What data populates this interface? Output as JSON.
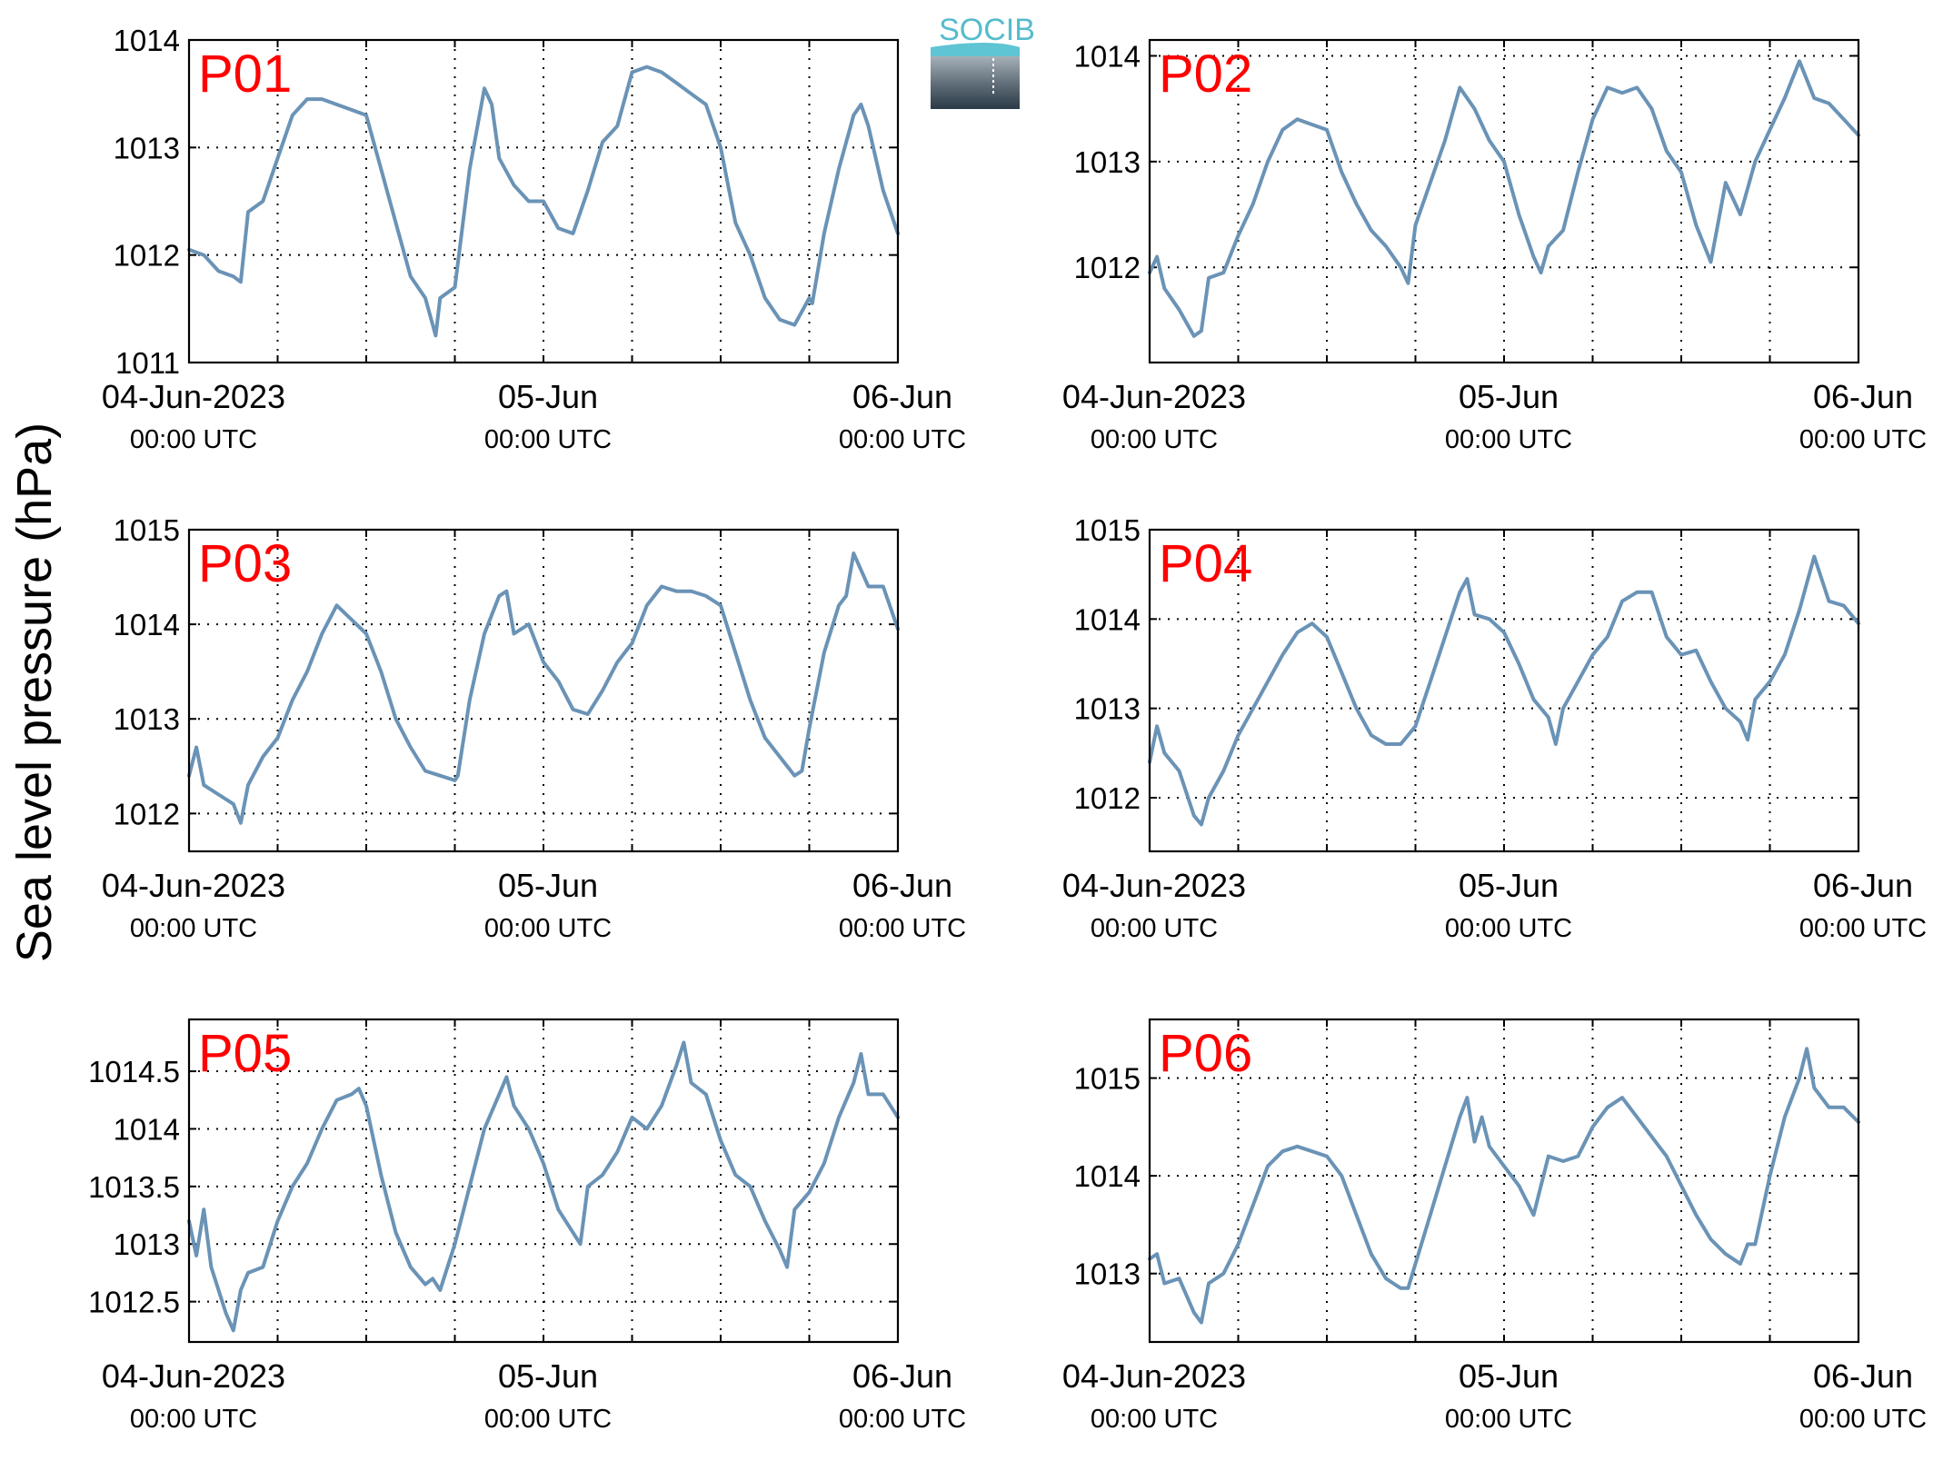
{
  "ylabel": "Sea level pressure (hPa)",
  "logo_text": "SOCIB",
  "colors": {
    "series": "#6a93b6",
    "panel_label": "#ff0000"
  },
  "x_tick_labels": [
    {
      "date": "04-Jun-2023",
      "time": "00:00 UTC"
    },
    {
      "date": "05-Jun",
      "time": "00:00 UTC"
    },
    {
      "date": "06-Jun",
      "time": "00:00 UTC"
    }
  ],
  "chart_data": [
    {
      "type": "line",
      "title": "P01",
      "xlim": [
        0,
        48
      ],
      "ylim": [
        1011,
        1014
      ],
      "grid": true,
      "yticks": [
        1011,
        1012,
        1013,
        1014
      ],
      "ytick_labels": [
        "1011",
        "1012",
        "1013",
        "1014"
      ],
      "x_hours": [
        0,
        1,
        2,
        3,
        3.5,
        4,
        5,
        6,
        7,
        8,
        9,
        10,
        11,
        12,
        13,
        14,
        15,
        16,
        16.7,
        17,
        18,
        19,
        20,
        20.5,
        21,
        22,
        23,
        24,
        25,
        26,
        27,
        28,
        29,
        30,
        31,
        32,
        33,
        34,
        35,
        36,
        37,
        38,
        39,
        40,
        41,
        42,
        42.2,
        43,
        44,
        45,
        45.5,
        46,
        47,
        48
      ],
      "values": [
        1012.05,
        1012.0,
        1011.85,
        1011.8,
        1011.75,
        1012.4,
        1012.5,
        1012.9,
        1013.3,
        1013.45,
        1013.45,
        1013.4,
        1013.35,
        1013.3,
        1012.8,
        1012.3,
        1011.8,
        1011.6,
        1011.25,
        1011.6,
        1011.7,
        1012.8,
        1013.55,
        1013.4,
        1012.9,
        1012.65,
        1012.5,
        1012.5,
        1012.25,
        1012.2,
        1012.6,
        1013.05,
        1013.2,
        1013.7,
        1013.75,
        1013.7,
        1013.6,
        1013.5,
        1013.4,
        1013.0,
        1012.3,
        1012.0,
        1011.6,
        1011.4,
        1011.35,
        1011.6,
        1011.55,
        1012.2,
        1012.8,
        1013.3,
        1013.4,
        1013.2,
        1012.6,
        1012.2
      ]
    },
    {
      "type": "line",
      "title": "P02",
      "xlim": [
        0,
        48
      ],
      "ylim": [
        1011.1,
        1014.15
      ],
      "grid": true,
      "yticks": [
        1012,
        1013,
        1014
      ],
      "ytick_labels": [
        "1012",
        "1013",
        "1014"
      ],
      "x_hours": [
        0,
        0.5,
        1,
        2,
        3,
        3.5,
        4,
        5,
        6,
        7,
        8,
        9,
        10,
        11,
        12,
        13,
        14,
        15,
        16,
        17,
        17.5,
        18,
        19,
        20,
        21,
        22,
        23,
        24,
        25,
        26,
        26.5,
        27,
        28,
        29,
        30,
        31,
        32,
        33,
        34,
        35,
        35.5,
        36,
        37,
        38,
        39,
        40,
        41,
        42,
        43,
        44,
        45,
        46,
        47,
        48
      ],
      "values": [
        1011.95,
        1012.1,
        1011.8,
        1011.6,
        1011.35,
        1011.4,
        1011.9,
        1011.95,
        1012.3,
        1012.6,
        1013.0,
        1013.3,
        1013.4,
        1013.35,
        1013.3,
        1012.9,
        1012.6,
        1012.35,
        1012.2,
        1012.0,
        1011.85,
        1012.4,
        1012.8,
        1013.2,
        1013.7,
        1013.5,
        1013.2,
        1013.0,
        1012.5,
        1012.1,
        1011.95,
        1012.2,
        1012.35,
        1012.9,
        1013.4,
        1013.7,
        1013.65,
        1013.7,
        1013.5,
        1013.1,
        1013.0,
        1012.9,
        1012.4,
        1012.05,
        1012.8,
        1012.5,
        1013.0,
        1013.3,
        1013.6,
        1013.95,
        1013.6,
        1013.55,
        1013.4,
        1013.25
      ]
    },
    {
      "type": "line",
      "title": "P03",
      "xlim": [
        0,
        48
      ],
      "ylim": [
        1011.6,
        1015
      ],
      "grid": true,
      "yticks": [
        1012,
        1013,
        1014,
        1015
      ],
      "ytick_labels": [
        "1012",
        "1013",
        "1014",
        "1015"
      ],
      "x_hours": [
        0,
        0.5,
        1,
        2,
        3,
        3.5,
        4,
        5,
        6,
        7,
        8,
        9,
        10,
        11,
        12,
        13,
        14,
        15,
        16,
        17,
        18,
        18.2,
        19,
        20,
        21,
        21.5,
        22,
        23,
        24,
        25,
        26,
        27,
        28,
        29,
        30,
        31,
        32,
        33,
        34,
        35,
        36,
        37,
        38,
        39,
        40,
        41,
        41.5,
        42,
        43,
        44,
        44.5,
        45,
        46,
        47,
        48
      ],
      "values": [
        1012.4,
        1012.7,
        1012.3,
        1012.2,
        1012.1,
        1011.9,
        1012.3,
        1012.6,
        1012.8,
        1013.2,
        1013.5,
        1013.9,
        1014.2,
        1014.05,
        1013.9,
        1013.5,
        1013.0,
        1012.7,
        1012.45,
        1012.4,
        1012.35,
        1012.4,
        1013.2,
        1013.9,
        1014.3,
        1014.35,
        1013.9,
        1014.0,
        1013.6,
        1013.4,
        1013.1,
        1013.05,
        1013.3,
        1013.6,
        1013.8,
        1014.2,
        1014.4,
        1014.35,
        1014.35,
        1014.3,
        1014.2,
        1013.7,
        1013.2,
        1012.8,
        1012.6,
        1012.4,
        1012.45,
        1012.9,
        1013.7,
        1014.2,
        1014.3,
        1014.75,
        1014.4,
        1014.4,
        1013.95
      ]
    },
    {
      "type": "line",
      "title": "P04",
      "xlim": [
        0,
        48
      ],
      "ylim": [
        1011.4,
        1015
      ],
      "grid": true,
      "yticks": [
        1012,
        1013,
        1014,
        1015
      ],
      "ytick_labels": [
        "1012",
        "1013",
        "1014",
        "1015"
      ],
      "x_hours": [
        0,
        0.5,
        1,
        2,
        3,
        3.5,
        4,
        5,
        6,
        7,
        8,
        9,
        10,
        11,
        12,
        13,
        14,
        15,
        16,
        17,
        18,
        19,
        20,
        21,
        21.5,
        22,
        23,
        24,
        25,
        26,
        27,
        27.5,
        28,
        29,
        30,
        31,
        32,
        33,
        34,
        35,
        36,
        37,
        38,
        39,
        40,
        40.5,
        41,
        42,
        43,
        44,
        44.5,
        45,
        46,
        47,
        48
      ],
      "values": [
        1012.4,
        1012.8,
        1012.5,
        1012.3,
        1011.8,
        1011.7,
        1012.0,
        1012.3,
        1012.7,
        1013.0,
        1013.3,
        1013.6,
        1013.85,
        1013.95,
        1013.8,
        1013.4,
        1013.0,
        1012.7,
        1012.6,
        1012.6,
        1012.8,
        1013.3,
        1013.8,
        1014.3,
        1014.45,
        1014.05,
        1014.0,
        1013.85,
        1013.5,
        1013.1,
        1012.9,
        1012.6,
        1013.0,
        1013.3,
        1013.6,
        1013.8,
        1014.2,
        1014.3,
        1014.3,
        1013.8,
        1013.6,
        1013.65,
        1013.3,
        1013.0,
        1012.85,
        1012.65,
        1013.1,
        1013.3,
        1013.6,
        1014.1,
        1014.4,
        1014.7,
        1014.2,
        1014.15,
        1013.95
      ]
    },
    {
      "type": "line",
      "title": "P05",
      "xlim": [
        0,
        48
      ],
      "ylim": [
        1012.15,
        1014.95
      ],
      "grid": true,
      "yticks": [
        1012.5,
        1013,
        1013.5,
        1014,
        1014.5
      ],
      "ytick_labels": [
        "1012.5",
        "1013",
        "1013.5",
        "1014",
        "1014.5"
      ],
      "x_hours": [
        0,
        0.5,
        1,
        1.5,
        2,
        2.5,
        3,
        3.5,
        4,
        5,
        6,
        7,
        8,
        9,
        10,
        11,
        11.5,
        12,
        13,
        14,
        15,
        16,
        16.5,
        17,
        18,
        19,
        20,
        21,
        21.5,
        22,
        23,
        24,
        25,
        26,
        26.5,
        27,
        28,
        29,
        30,
        31,
        32,
        33,
        33.5,
        34,
        35,
        36,
        37,
        38,
        39,
        40,
        40.5,
        41,
        42,
        43,
        44,
        45,
        45.5,
        46,
        47,
        48
      ],
      "values": [
        1013.2,
        1012.9,
        1013.3,
        1012.8,
        1012.6,
        1012.4,
        1012.25,
        1012.6,
        1012.75,
        1012.8,
        1013.2,
        1013.5,
        1013.7,
        1014.0,
        1014.25,
        1014.3,
        1014.35,
        1014.2,
        1013.6,
        1013.1,
        1012.8,
        1012.65,
        1012.7,
        1012.6,
        1013.0,
        1013.5,
        1014.0,
        1014.3,
        1014.45,
        1014.2,
        1014.0,
        1013.7,
        1013.3,
        1013.1,
        1013.0,
        1013.5,
        1013.6,
        1013.8,
        1014.1,
        1014.0,
        1014.2,
        1014.55,
        1014.75,
        1014.4,
        1014.3,
        1013.9,
        1013.6,
        1013.5,
        1013.2,
        1012.95,
        1012.8,
        1013.3,
        1013.45,
        1013.7,
        1014.1,
        1014.4,
        1014.65,
        1014.3,
        1014.3,
        1014.1
      ]
    },
    {
      "type": "line",
      "title": "P06",
      "xlim": [
        0,
        48
      ],
      "ylim": [
        1012.3,
        1015.6
      ],
      "grid": true,
      "yticks": [
        1013,
        1014,
        1015
      ],
      "ytick_labels": [
        "1013",
        "1014",
        "1015"
      ],
      "x_hours": [
        0,
        0.5,
        1,
        2,
        3,
        3.5,
        4,
        5,
        6,
        7,
        8,
        9,
        10,
        11,
        12,
        13,
        14,
        15,
        16,
        16.5,
        17,
        17.5,
        18,
        19,
        20,
        21,
        21.5,
        22,
        22.5,
        23,
        24,
        25,
        26,
        27,
        28,
        29,
        30,
        31,
        32,
        33,
        34,
        35,
        36,
        37,
        38,
        39,
        40,
        40.5,
        41,
        42,
        43,
        44,
        44.5,
        45,
        46,
        47,
        48
      ],
      "values": [
        1013.15,
        1013.2,
        1012.9,
        1012.95,
        1012.6,
        1012.5,
        1012.9,
        1013.0,
        1013.3,
        1013.7,
        1014.1,
        1014.25,
        1014.3,
        1014.25,
        1014.2,
        1014.0,
        1013.6,
        1013.2,
        1012.95,
        1012.9,
        1012.85,
        1012.85,
        1013.1,
        1013.6,
        1014.1,
        1014.6,
        1014.8,
        1014.35,
        1014.6,
        1014.3,
        1014.1,
        1013.9,
        1013.6,
        1014.2,
        1014.15,
        1014.2,
        1014.5,
        1014.7,
        1014.8,
        1014.6,
        1014.4,
        1014.2,
        1013.9,
        1013.6,
        1013.35,
        1013.2,
        1013.1,
        1013.3,
        1013.3,
        1014.0,
        1014.6,
        1015.0,
        1015.3,
        1014.9,
        1014.7,
        1014.7,
        1014.55
      ]
    }
  ]
}
